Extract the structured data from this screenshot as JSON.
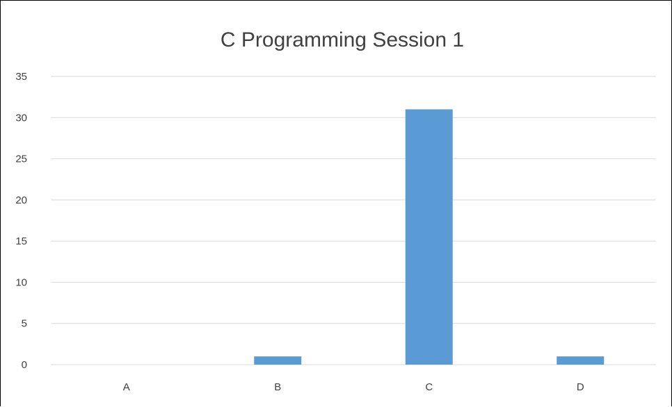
{
  "chart_data": {
    "type": "bar",
    "title": "C Programming Session 1",
    "categories": [
      "A",
      "B",
      "C",
      "D"
    ],
    "values": [
      0,
      1,
      31,
      1
    ],
    "xlabel": "",
    "ylabel": "",
    "ylim": [
      0,
      35
    ],
    "yticks": [
      "0",
      "5",
      "10",
      "15",
      "20",
      "25",
      "30",
      "35"
    ],
    "grid": "horizontal",
    "legend": "none",
    "bar_color": "#5b9bd5",
    "gridline_color": "#d9d9d9"
  }
}
